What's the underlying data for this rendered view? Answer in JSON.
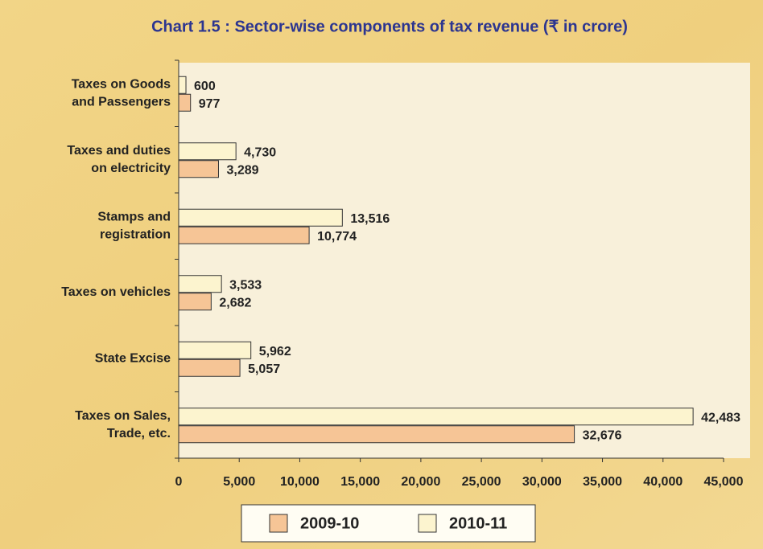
{
  "chart_data": {
    "type": "hbar",
    "title": "Chart 1.5 : Sector-wise components of tax revenue (₹ in crore)",
    "categories": [
      [
        "Taxes on Goods",
        "and Passengers"
      ],
      [
        "Taxes and duties",
        "on electricity"
      ],
      [
        "Stamps and",
        "registration"
      ],
      [
        "Taxes on vehicles"
      ],
      [
        "State Excise"
      ],
      [
        "Taxes on Sales,",
        "Trade, etc."
      ]
    ],
    "series": [
      {
        "name": "2010-11",
        "color": "#fcf4cf",
        "values": [
          600,
          4730,
          13516,
          3533,
          5962,
          42483
        ],
        "value_labels": [
          "600",
          "4,730",
          "13,516",
          "3,533",
          "5,962",
          "42,483"
        ]
      },
      {
        "name": "2009-10",
        "color": "#f6c596",
        "values": [
          977,
          3289,
          10774,
          2682,
          5057,
          32676
        ],
        "value_labels": [
          "977",
          "3,289",
          "10,774",
          "2,682",
          "5,057",
          "32,676"
        ]
      }
    ],
    "xlim": [
      0,
      45000
    ],
    "xticks": [
      0,
      {
        "value": 5000,
        "label": "5,000"
      },
      {
        "value": 10000,
        "label": "10,000"
      },
      {
        "value": 15000,
        "label": "15,000"
      },
      {
        "value": 20000,
        "label": "20,000"
      },
      {
        "value": 25000,
        "label": "25,000"
      },
      {
        "value": 30000,
        "label": "30,000"
      },
      {
        "value": 35000,
        "label": "35,000"
      },
      {
        "value": 40000,
        "label": "40,000"
      },
      {
        "value": 45000,
        "label": "45,000"
      }
    ],
    "legend_order": [
      1,
      0
    ]
  }
}
